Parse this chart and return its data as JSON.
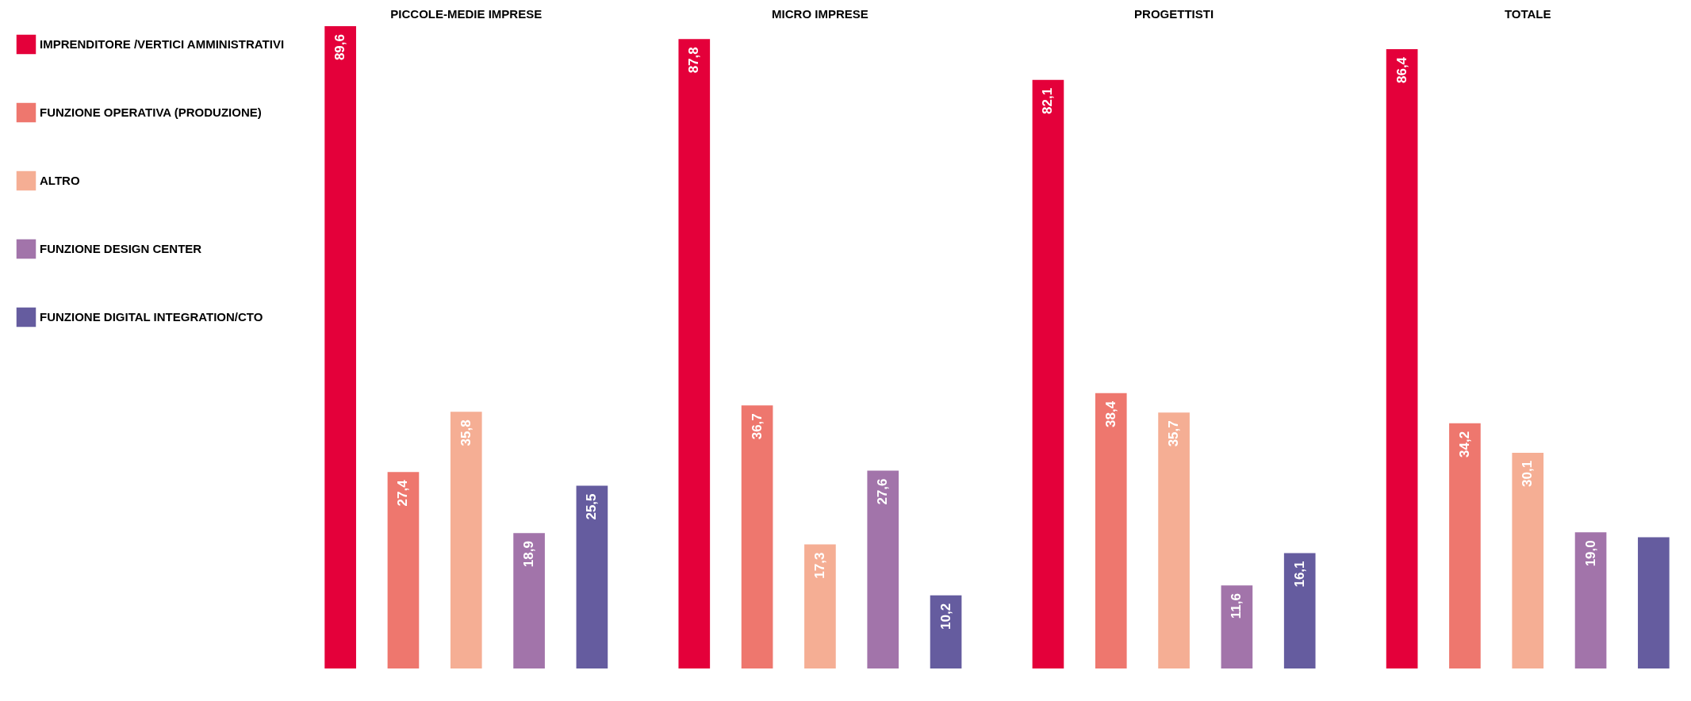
{
  "chart_data": {
    "type": "bar",
    "categories": [
      "PICCOLE-MEDIE IMPRESE",
      "MICRO IMPRESE",
      "PROGETTISTI",
      "TOTALE"
    ],
    "series": [
      {
        "name": "IMPRENDITORE /VERTICI AMMINISTRATIVI",
        "color": "#e4003a",
        "values": [
          89.6,
          87.8,
          82.1,
          86.4
        ],
        "value_labels": [
          "89,6",
          "87,8",
          "82,1",
          "86,4"
        ]
      },
      {
        "name": "FUNZIONE OPERATIVA (PRODUZIONE)",
        "color": "#ee776e",
        "values": [
          27.4,
          36.7,
          38.4,
          34.2
        ],
        "value_labels": [
          "27,4",
          "36,7",
          "38,4",
          "34,2"
        ]
      },
      {
        "name": "ALTRO",
        "color": "#f5ae94",
        "values": [
          35.8,
          17.3,
          35.7,
          30.1
        ],
        "value_labels": [
          "35,8",
          "17,3",
          "35,7",
          "30,1"
        ]
      },
      {
        "name": "FUNZIONE DESIGN CENTER",
        "color": "#a274aa",
        "values": [
          18.9,
          27.6,
          11.6,
          19.0
        ],
        "value_labels": [
          "18,9",
          "27,6",
          "11,6",
          "19,0"
        ]
      },
      {
        "name": "FUNZIONE DIGITAL INTEGRATION/CTO",
        "color": "#655c9f",
        "values": [
          25.5,
          10.2,
          16.1,
          18.3
        ],
        "value_labels": [
          "25,5",
          "10,2",
          "16,1",
          null
        ]
      }
    ],
    "legend": "left",
    "grid": false
  }
}
